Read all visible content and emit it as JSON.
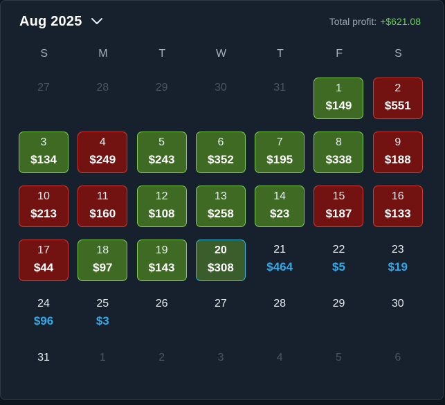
{
  "header": {
    "month_label": "Aug 2025",
    "total_label": "Total profit:",
    "total_value": "+$621.08"
  },
  "colors": {
    "win": "#3e6a23",
    "loss": "#731311",
    "projected": "#35a9e8",
    "profit_positive": "#6bd35a",
    "today_border": "#2fb8de"
  },
  "weekdays": [
    "S",
    "M",
    "T",
    "W",
    "T",
    "F",
    "S"
  ],
  "weeks": [
    [
      {
        "day": "27",
        "amount": "",
        "status": "other"
      },
      {
        "day": "28",
        "amount": "",
        "status": "other"
      },
      {
        "day": "29",
        "amount": "",
        "status": "other"
      },
      {
        "day": "30",
        "amount": "",
        "status": "other"
      },
      {
        "day": "31",
        "amount": "",
        "status": "other"
      },
      {
        "day": "1",
        "amount": "$149",
        "status": "win"
      },
      {
        "day": "2",
        "amount": "$551",
        "status": "loss"
      }
    ],
    [
      {
        "day": "3",
        "amount": "$134",
        "status": "win"
      },
      {
        "day": "4",
        "amount": "$249",
        "status": "loss"
      },
      {
        "day": "5",
        "amount": "$243",
        "status": "win"
      },
      {
        "day": "6",
        "amount": "$352",
        "status": "win"
      },
      {
        "day": "7",
        "amount": "$195",
        "status": "win"
      },
      {
        "day": "8",
        "amount": "$338",
        "status": "win"
      },
      {
        "day": "9",
        "amount": "$188",
        "status": "loss"
      }
    ],
    [
      {
        "day": "10",
        "amount": "$213",
        "status": "loss"
      },
      {
        "day": "11",
        "amount": "$160",
        "status": "loss"
      },
      {
        "day": "12",
        "amount": "$108",
        "status": "win"
      },
      {
        "day": "13",
        "amount": "$258",
        "status": "win"
      },
      {
        "day": "14",
        "amount": "$23",
        "status": "win"
      },
      {
        "day": "15",
        "amount": "$187",
        "status": "loss"
      },
      {
        "day": "16",
        "amount": "$133",
        "status": "loss"
      }
    ],
    [
      {
        "day": "17",
        "amount": "$44",
        "status": "loss"
      },
      {
        "day": "18",
        "amount": "$97",
        "status": "win"
      },
      {
        "day": "19",
        "amount": "$143",
        "status": "win"
      },
      {
        "day": "20",
        "amount": "$308",
        "status": "today"
      },
      {
        "day": "21",
        "amount": "$464",
        "status": "projected"
      },
      {
        "day": "22",
        "amount": "$5",
        "status": "projected"
      },
      {
        "day": "23",
        "amount": "$19",
        "status": "projected"
      }
    ],
    [
      {
        "day": "24",
        "amount": "$96",
        "status": "projected"
      },
      {
        "day": "25",
        "amount": "$3",
        "status": "projected"
      },
      {
        "day": "26",
        "amount": "",
        "status": "future"
      },
      {
        "day": "27",
        "amount": "",
        "status": "future"
      },
      {
        "day": "28",
        "amount": "",
        "status": "future"
      },
      {
        "day": "29",
        "amount": "",
        "status": "future"
      },
      {
        "day": "30",
        "amount": "",
        "status": "future"
      }
    ],
    [
      {
        "day": "31",
        "amount": "",
        "status": "future"
      },
      {
        "day": "1",
        "amount": "",
        "status": "other"
      },
      {
        "day": "2",
        "amount": "",
        "status": "other"
      },
      {
        "day": "3",
        "amount": "",
        "status": "other"
      },
      {
        "day": "4",
        "amount": "",
        "status": "other"
      },
      {
        "day": "5",
        "amount": "",
        "status": "other"
      },
      {
        "day": "6",
        "amount": "",
        "status": "other"
      }
    ]
  ]
}
